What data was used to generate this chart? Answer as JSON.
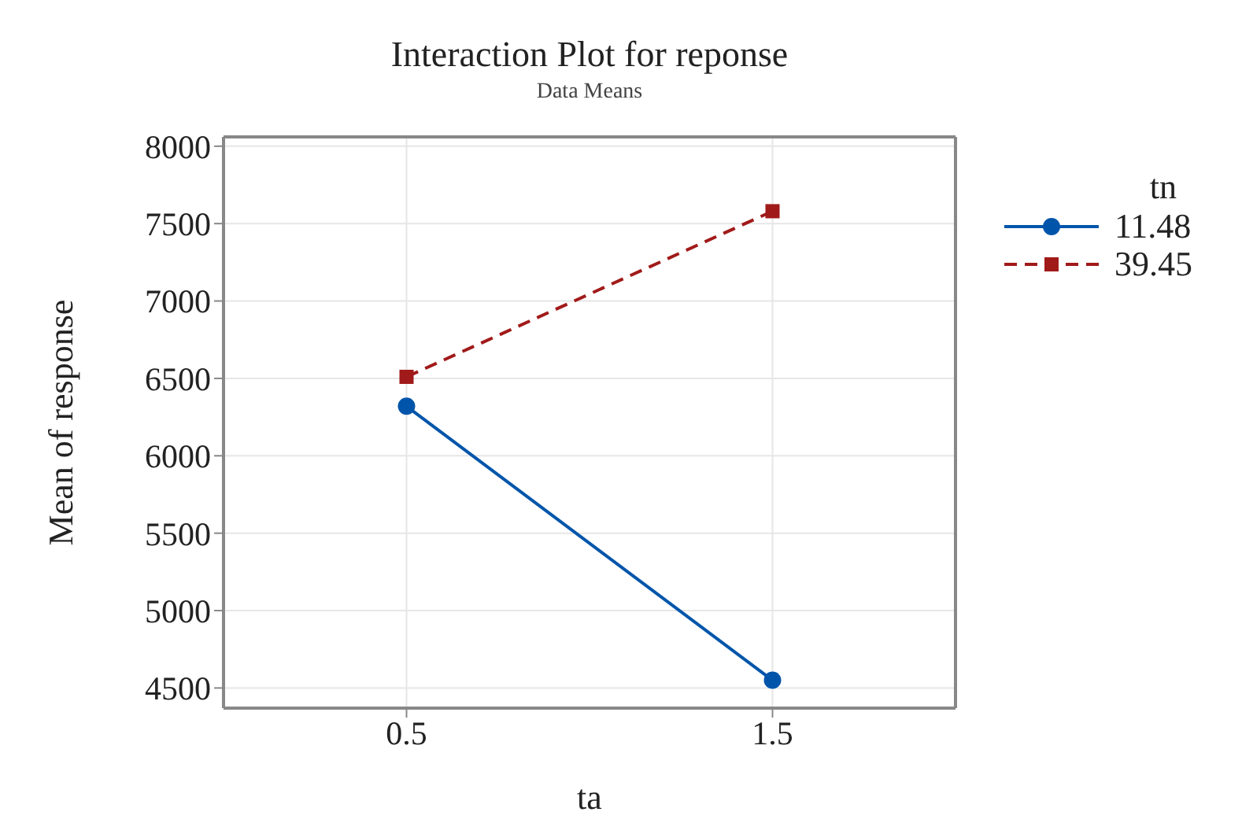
{
  "chart_data": {
    "type": "line",
    "title": "Interaction Plot for reponse",
    "subtitle": "Data Means",
    "xlabel": "ta",
    "ylabel": "Mean of response",
    "legend_title": "tn",
    "x": [
      0.5,
      1.5
    ],
    "series": [
      {
        "name": "11.48",
        "color": "#0055aa",
        "values": [
          6320,
          4550
        ],
        "marker": "circle",
        "line_style": "solid"
      },
      {
        "name": "39.45",
        "color": "#a11a1a",
        "values": [
          6510,
          7580
        ],
        "marker": "square",
        "line_style": "dashed"
      }
    ],
    "xlim": [
      0,
      2
    ],
    "xticks": [
      0.5,
      1.5
    ],
    "ylim": [
      4370,
      8060
    ],
    "yticks": [
      4500,
      5000,
      5500,
      6000,
      6500,
      7000,
      7500,
      8000
    ],
    "grid": true,
    "legend": "right"
  }
}
